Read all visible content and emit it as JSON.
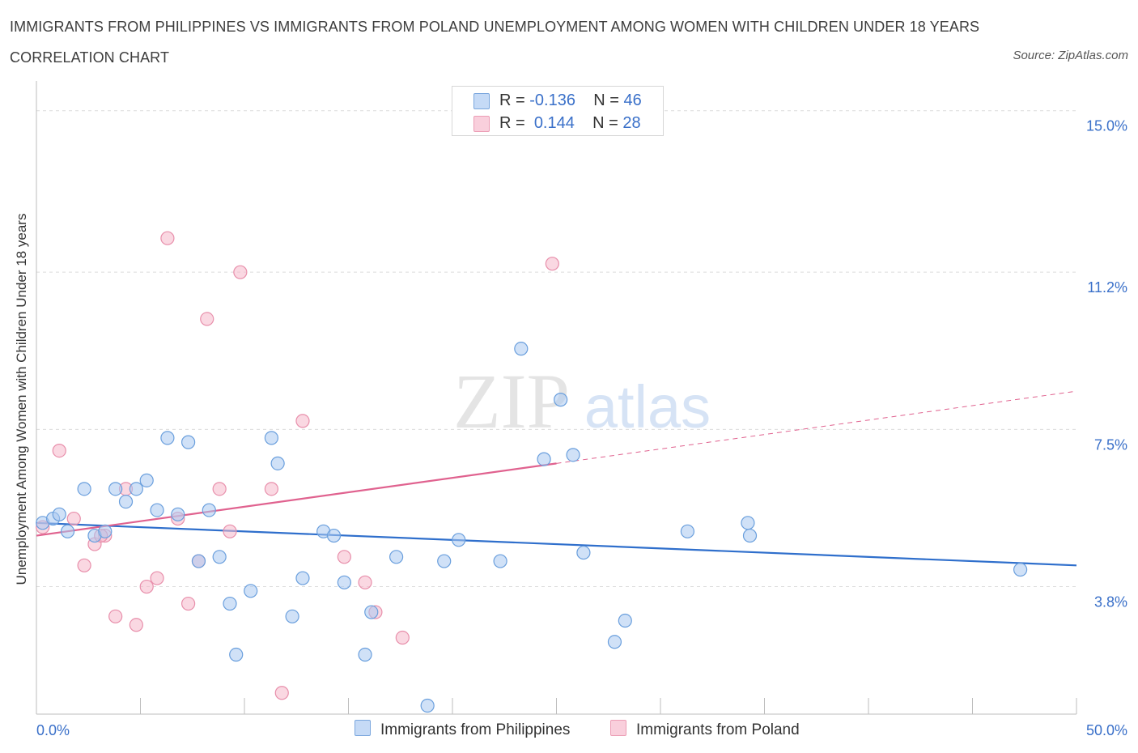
{
  "title": "IMMIGRANTS FROM PHILIPPINES VS IMMIGRANTS FROM POLAND UNEMPLOYMENT AMONG WOMEN WITH CHILDREN UNDER 18 YEARS CORRELATION CHART",
  "source": "Source: ZipAtlas.com",
  "watermark": {
    "zip": "ZIP",
    "atlas": "atlas"
  },
  "legend": {
    "rows": [
      {
        "r_label": "R =",
        "r_value": "-0.136",
        "n_label": "N =",
        "n_value": "46",
        "color": "#a9c8f0"
      },
      {
        "r_label": "R =",
        "r_value": "0.144",
        "n_label": "N =",
        "n_value": "28",
        "color": "#f5b8cb"
      }
    ]
  },
  "chart_data": {
    "type": "scatter",
    "ylabel": "Unemployment Among Women with Children Under 18 years",
    "xlabel": "",
    "xlim": [
      0,
      50
    ],
    "ylim": [
      0.8,
      15.7
    ],
    "x_tick_labels": [
      "0.0%",
      "50.0%"
    ],
    "y_ticks": [
      3.8,
      7.5,
      11.2,
      15.0
    ],
    "y_tick_labels": [
      "3.8%",
      "7.5%",
      "11.2%",
      "15.0%"
    ],
    "grid": true,
    "series": [
      {
        "name": "Immigrants from Philippines",
        "color": "#a9c8f0",
        "stroke": "#6a9fdd",
        "trend_color": "#2f6fcc",
        "trend": {
          "x": [
            0,
            50
          ],
          "y": [
            5.3,
            4.3
          ]
        },
        "points": [
          [
            0.3,
            5.3
          ],
          [
            0.8,
            5.4
          ],
          [
            1.5,
            5.1
          ],
          [
            2.3,
            6.1
          ],
          [
            2.8,
            5.0
          ],
          [
            3.3,
            5.1
          ],
          [
            3.8,
            6.1
          ],
          [
            4.3,
            5.8
          ],
          [
            4.8,
            6.1
          ],
          [
            5.3,
            6.3
          ],
          [
            5.8,
            5.6
          ],
          [
            6.3,
            7.3
          ],
          [
            6.8,
            5.5
          ],
          [
            7.3,
            7.2
          ],
          [
            7.8,
            4.4
          ],
          [
            8.3,
            5.6
          ],
          [
            8.8,
            4.5
          ],
          [
            9.3,
            3.4
          ],
          [
            9.6,
            2.2
          ],
          [
            10.3,
            3.7
          ],
          [
            11.3,
            7.3
          ],
          [
            11.6,
            6.7
          ],
          [
            12.3,
            3.1
          ],
          [
            12.8,
            4.0
          ],
          [
            13.8,
            5.1
          ],
          [
            14.3,
            5.0
          ],
          [
            14.8,
            3.9
          ],
          [
            15.8,
            2.2
          ],
          [
            16.1,
            3.2
          ],
          [
            17.3,
            4.5
          ],
          [
            18.8,
            1.0
          ],
          [
            20.3,
            4.9
          ],
          [
            19.6,
            4.4
          ],
          [
            22.3,
            4.4
          ],
          [
            23.3,
            9.4
          ],
          [
            25.2,
            8.2
          ],
          [
            24.4,
            6.8
          ],
          [
            25.8,
            6.9
          ],
          [
            26.3,
            4.6
          ],
          [
            27.8,
            2.5
          ],
          [
            28.3,
            3.0
          ],
          [
            31.3,
            5.1
          ],
          [
            34.2,
            5.3
          ],
          [
            34.3,
            5.0
          ],
          [
            47.3,
            4.2
          ],
          [
            1.1,
            5.5
          ]
        ]
      },
      {
        "name": "Immigrants from Poland",
        "color": "#f5b8cb",
        "stroke": "#e88fab",
        "trend_color": "#e0628f",
        "trend": {
          "x": [
            0,
            25
          ],
          "y": [
            5.0,
            6.7
          ]
        },
        "trend_extension": {
          "x": [
            25,
            50
          ],
          "y": [
            6.7,
            8.4
          ]
        },
        "points": [
          [
            0.3,
            5.2
          ],
          [
            1.1,
            7.0
          ],
          [
            1.8,
            5.4
          ],
          [
            2.3,
            4.3
          ],
          [
            2.8,
            4.8
          ],
          [
            3.3,
            5.0
          ],
          [
            3.8,
            3.1
          ],
          [
            4.3,
            6.1
          ],
          [
            4.8,
            2.9
          ],
          [
            5.3,
            3.8
          ],
          [
            5.8,
            4.0
          ],
          [
            6.3,
            12.0
          ],
          [
            6.8,
            5.4
          ],
          [
            7.3,
            3.4
          ],
          [
            7.8,
            4.4
          ],
          [
            8.2,
            10.1
          ],
          [
            8.8,
            6.1
          ],
          [
            9.3,
            5.1
          ],
          [
            9.8,
            11.2
          ],
          [
            11.3,
            6.1
          ],
          [
            11.8,
            1.3
          ],
          [
            12.8,
            7.7
          ],
          [
            14.8,
            4.5
          ],
          [
            15.8,
            3.9
          ],
          [
            16.3,
            3.2
          ],
          [
            17.6,
            2.6
          ],
          [
            24.8,
            11.4
          ],
          [
            3.1,
            5.0
          ]
        ]
      }
    ]
  },
  "bottom_legend": [
    {
      "label": "Immigrants from Philippines",
      "color": "#a9c8f0"
    },
    {
      "label": "Immigrants from Poland",
      "color": "#f5b8cb"
    }
  ]
}
